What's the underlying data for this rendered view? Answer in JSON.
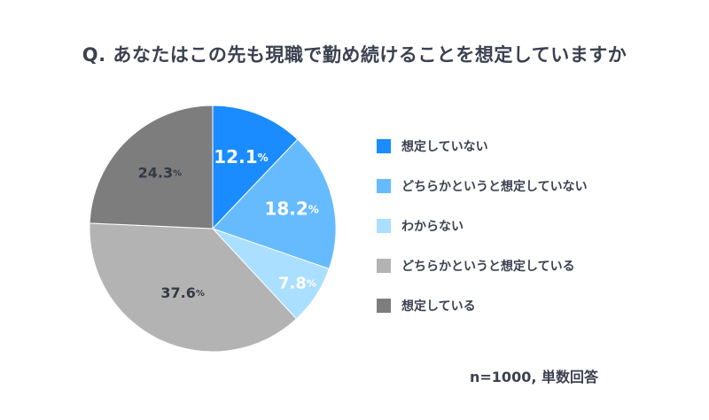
{
  "chart_data": {
    "type": "pie",
    "title": "Q. あなたはこの先も現職で勤め続けることを想定していますか",
    "note": "n=1000, 単数回答",
    "unit": "%",
    "slices": [
      {
        "label": "想定していない",
        "value": 12.1,
        "display": "12.1",
        "color": "#1a8cff",
        "text_color": "#ffffff"
      },
      {
        "label": "どちらかというと想定していない",
        "value": 18.2,
        "display": "18.2",
        "color": "#66bbff",
        "text_color": "#ffffff"
      },
      {
        "label": "わからない",
        "value": 7.8,
        "display": "7.8",
        "color": "#aadfff",
        "text_color": "#ffffff"
      },
      {
        "label": "どちらかというと想定している",
        "value": 37.6,
        "display": "37.6",
        "color": "#b3b3b3",
        "text_color": "#333a45"
      },
      {
        "label": "想定している",
        "value": 24.3,
        "display": "24.3",
        "color": "#7d7d7d",
        "text_color": "#333a45"
      }
    ]
  }
}
